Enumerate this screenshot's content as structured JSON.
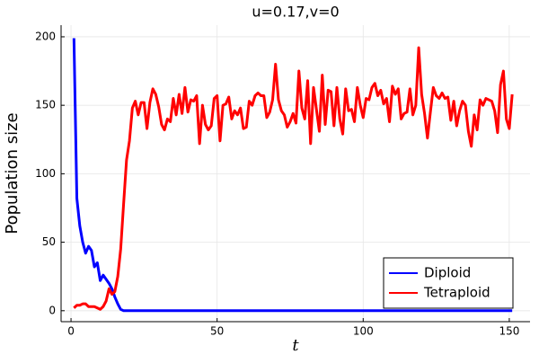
{
  "chart_data": {
    "type": "line",
    "title": "u=0.17,v=0",
    "xlabel": "t",
    "ylabel": "Population size",
    "x": [
      1,
      2,
      3,
      4,
      5,
      6,
      7,
      8,
      9,
      10,
      11,
      12,
      13,
      14,
      15,
      16,
      17,
      18,
      19,
      20,
      21,
      22,
      23,
      24,
      25,
      26,
      27,
      28,
      29,
      30,
      31,
      32,
      33,
      34,
      35,
      36,
      37,
      38,
      39,
      40,
      41,
      42,
      43,
      44,
      45,
      46,
      47,
      48,
      49,
      50,
      51,
      52,
      53,
      54,
      55,
      56,
      57,
      58,
      59,
      60,
      61,
      62,
      63,
      64,
      65,
      66,
      67,
      68,
      69,
      70,
      71,
      72,
      73,
      74,
      75,
      76,
      77,
      78,
      79,
      80,
      81,
      82,
      83,
      84,
      85,
      86,
      87,
      88,
      89,
      90,
      91,
      92,
      93,
      94,
      95,
      96,
      97,
      98,
      99,
      100,
      101,
      102,
      103,
      104,
      105,
      106,
      107,
      108,
      109,
      110,
      111,
      112,
      113,
      114,
      115,
      116,
      117,
      118,
      119,
      120,
      121,
      122,
      123,
      124,
      125,
      126,
      127,
      128,
      129,
      130,
      131,
      132,
      133,
      134,
      135,
      136,
      137,
      138,
      139,
      140,
      141,
      142,
      143,
      144,
      145,
      146,
      147,
      148,
      149,
      150,
      151
    ],
    "series": [
      {
        "name": "Diploid",
        "color": "#0000ff",
        "values": [
          199,
          82,
          62,
          50,
          42,
          47,
          44,
          32,
          35,
          22,
          26,
          23,
          20,
          16,
          10,
          5,
          1,
          0,
          0,
          0,
          0,
          0,
          0,
          0,
          0,
          0,
          0,
          0,
          0,
          0,
          0,
          0,
          0,
          0,
          0,
          0,
          0,
          0,
          0,
          0,
          0,
          0,
          0,
          0,
          0,
          0,
          0,
          0,
          0,
          0,
          0,
          0,
          0,
          0,
          0,
          0,
          0,
          0,
          0,
          0,
          0,
          0,
          0,
          0,
          0,
          0,
          0,
          0,
          0,
          0,
          0,
          0,
          0,
          0,
          0,
          0,
          0,
          0,
          0,
          0,
          0,
          0,
          0,
          0,
          0,
          0,
          0,
          0,
          0,
          0,
          0,
          0,
          0,
          0,
          0,
          0,
          0,
          0,
          0,
          0,
          0,
          0,
          0,
          0,
          0,
          0,
          0,
          0,
          0,
          0,
          0,
          0,
          0,
          0,
          0,
          0,
          0,
          0,
          0,
          0,
          0,
          0,
          0,
          0,
          0,
          0,
          0,
          0,
          0,
          0,
          0,
          0,
          0,
          0,
          0,
          0,
          0,
          0,
          0,
          0,
          0,
          0,
          0,
          0,
          0,
          0,
          0,
          0,
          0,
          0,
          0
        ]
      },
      {
        "name": "Tetraploid",
        "color": "#ff0000",
        "values": [
          2,
          4,
          4,
          5,
          5,
          3,
          3,
          3,
          2,
          1,
          3,
          7,
          16,
          12,
          14,
          25,
          45,
          78,
          110,
          124,
          148,
          153,
          143,
          152,
          152,
          133,
          152,
          162,
          158,
          149,
          136,
          132,
          140,
          138,
          155,
          143,
          158,
          144,
          163,
          145,
          154,
          153,
          157,
          122,
          150,
          136,
          132,
          135,
          155,
          157,
          124,
          150,
          151,
          156,
          140,
          146,
          143,
          148,
          133,
          134,
          153,
          150,
          157,
          159,
          157,
          157,
          141,
          145,
          154,
          180,
          154,
          146,
          143,
          134,
          138,
          144,
          137,
          175,
          148,
          140,
          168,
          122,
          163,
          147,
          131,
          172,
          136,
          161,
          160,
          135,
          163,
          140,
          129,
          162,
          146,
          147,
          138,
          163,
          150,
          141,
          155,
          154,
          163,
          166,
          157,
          161,
          151,
          155,
          138,
          164,
          158,
          162,
          140,
          144,
          145,
          162,
          143,
          150,
          192,
          158,
          144,
          126,
          145,
          163,
          157,
          155,
          159,
          155,
          156,
          139,
          153,
          135,
          146,
          153,
          150,
          131,
          120,
          143,
          132,
          154,
          150,
          155,
          154,
          153,
          146,
          130,
          165,
          175,
          140,
          133,
          158
        ]
      }
    ],
    "xlim": [
      -3.4,
      157.1
    ],
    "ylim": [
      -8,
      208.5
    ],
    "xticks": [
      0,
      50,
      100,
      150
    ],
    "yticks": [
      0,
      50,
      100,
      150,
      200
    ],
    "grid": true,
    "legend": "bottom-right"
  }
}
